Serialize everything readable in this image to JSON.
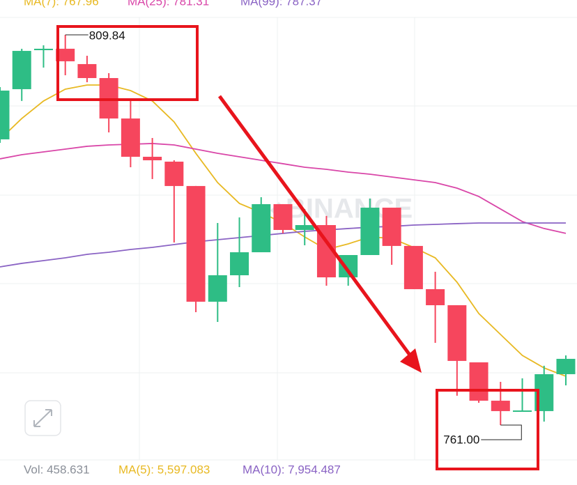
{
  "chart_data": {
    "type": "candlestick",
    "ylim": [
      756.64,
      814.2
    ],
    "up_color": "#2ebd85",
    "down_color": "#f6465d",
    "open": [
      796.76,
      803.04,
      807.92,
      808.1,
      806.18,
      804.43,
      799.37,
      794.58,
      793.97,
      790.92,
      776.44,
      779.75,
      782.63,
      788.65,
      785.42,
      786.03,
      779.49,
      782.28,
      788.21,
      783.42,
      778.01,
      776.0,
      768.85,
      764.05,
      762.66,
      762.75,
      767.37
    ],
    "high": [
      803.3,
      808.1,
      808.53,
      809.84,
      807.22,
      805.04,
      801.56,
      796.93,
      794.14,
      790.92,
      786.29,
      786.99,
      789.52,
      788.65,
      788.04,
      787.17,
      782.28,
      789.35,
      788.21,
      783.42,
      780.19,
      776.0,
      768.85,
      766.41,
      766.85,
      768.42,
      769.72
    ],
    "low": [
      796.32,
      801.56,
      805.74,
      804.78,
      803.91,
      797.63,
      793.27,
      791.79,
      783.85,
      775.13,
      773.91,
      778.27,
      782.63,
      784.99,
      783.5,
      778.44,
      778.44,
      782.28,
      781.06,
      778.01,
      771.29,
      764.67,
      763.79,
      761.0,
      762.75,
      761.44,
      765.97
    ],
    "close": [
      802.86,
      807.83,
      808.1,
      806.53,
      804.43,
      799.37,
      794.58,
      794.14,
      790.92,
      776.44,
      779.75,
      782.63,
      788.65,
      785.42,
      786.03,
      779.49,
      782.28,
      788.21,
      783.42,
      778.01,
      776.0,
      769.03,
      764.05,
      762.75,
      762.83,
      767.37,
      769.29
    ],
    "series": [
      {
        "name": "MA(7): 767.96",
        "color": "#e8b923",
        "values": [
          796.76,
          799.37,
          801.56,
          803.04,
          803.56,
          803.56,
          802.86,
          801.56,
          798.94,
          795.01,
          791.35,
          788.74,
          787.6,
          786.29,
          784.55,
          782.98,
          783.68,
          784.55,
          784.37,
          783.24,
          781.93,
          778.88,
          774.96,
          772.34,
          769.72,
          768.15,
          767.11
        ]
      },
      {
        "name": "MA(25): 781.31",
        "color": "#d946a8",
        "values": [
          794.32,
          794.84,
          795.19,
          795.54,
          795.89,
          796.06,
          796.15,
          796.24,
          796.06,
          795.54,
          795.01,
          794.58,
          794.14,
          793.71,
          793.27,
          793.01,
          792.66,
          792.4,
          792.05,
          791.7,
          791.35,
          790.65,
          789.61,
          788.04,
          786.47,
          785.6,
          784.99
        ]
      },
      {
        "name": "MA(99): 787.37",
        "color": "#8a63c4",
        "values": [
          780.8,
          781.24,
          781.58,
          781.93,
          782.37,
          782.63,
          782.98,
          783.24,
          783.59,
          783.94,
          784.2,
          784.46,
          784.72,
          784.99,
          785.25,
          785.42,
          785.6,
          785.77,
          785.86,
          786.03,
          786.12,
          786.21,
          786.29,
          786.29,
          786.29,
          786.29,
          786.29
        ]
      }
    ],
    "high_label": "809.84",
    "low_label": "761.00",
    "watermark": "BINANCE",
    "volume_legend": [
      {
        "text": "Vol: 458.631",
        "color": "#8a8f98"
      },
      {
        "text": "MA(5): 5,597.083",
        "color": "#e8b923"
      },
      {
        "text": "MA(10): 7,954.487",
        "color": "#8a63c4"
      }
    ]
  }
}
